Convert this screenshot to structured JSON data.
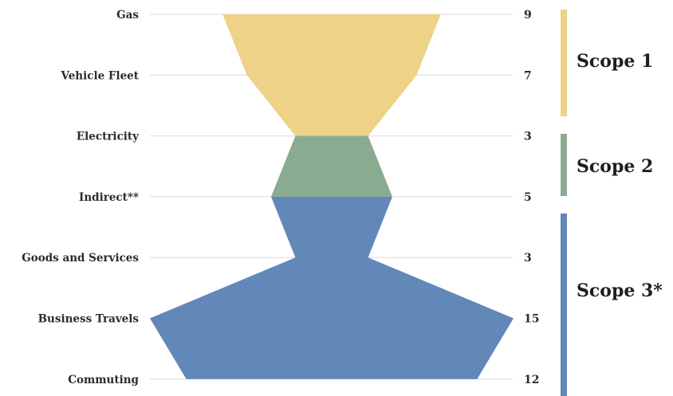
{
  "chart_data": {
    "type": "area",
    "categories": [
      "Gas",
      "Vehicle Fleet",
      "Electricity",
      "Indirect**",
      "Goods and Services",
      "Business Travels",
      "Commuting"
    ],
    "values": [
      9,
      7,
      3,
      5,
      3,
      15,
      12
    ],
    "segments": [
      {
        "name": "Scope 1",
        "from": 0,
        "to": 2,
        "color": "#EDD287"
      },
      {
        "name": "Scope 2",
        "from": 2,
        "to": 3,
        "color": "#8BAB91"
      },
      {
        "name": "Scope 3*",
        "from": 3,
        "to": 6,
        "color": "#6287B9"
      }
    ],
    "grid": true
  },
  "scopes": [
    {
      "label": "Scope 1",
      "color": "#EDD287"
    },
    {
      "label": "Scope 2",
      "color": "#8BAB91"
    },
    {
      "label": "Scope 3*",
      "color": "#6287B9"
    }
  ]
}
